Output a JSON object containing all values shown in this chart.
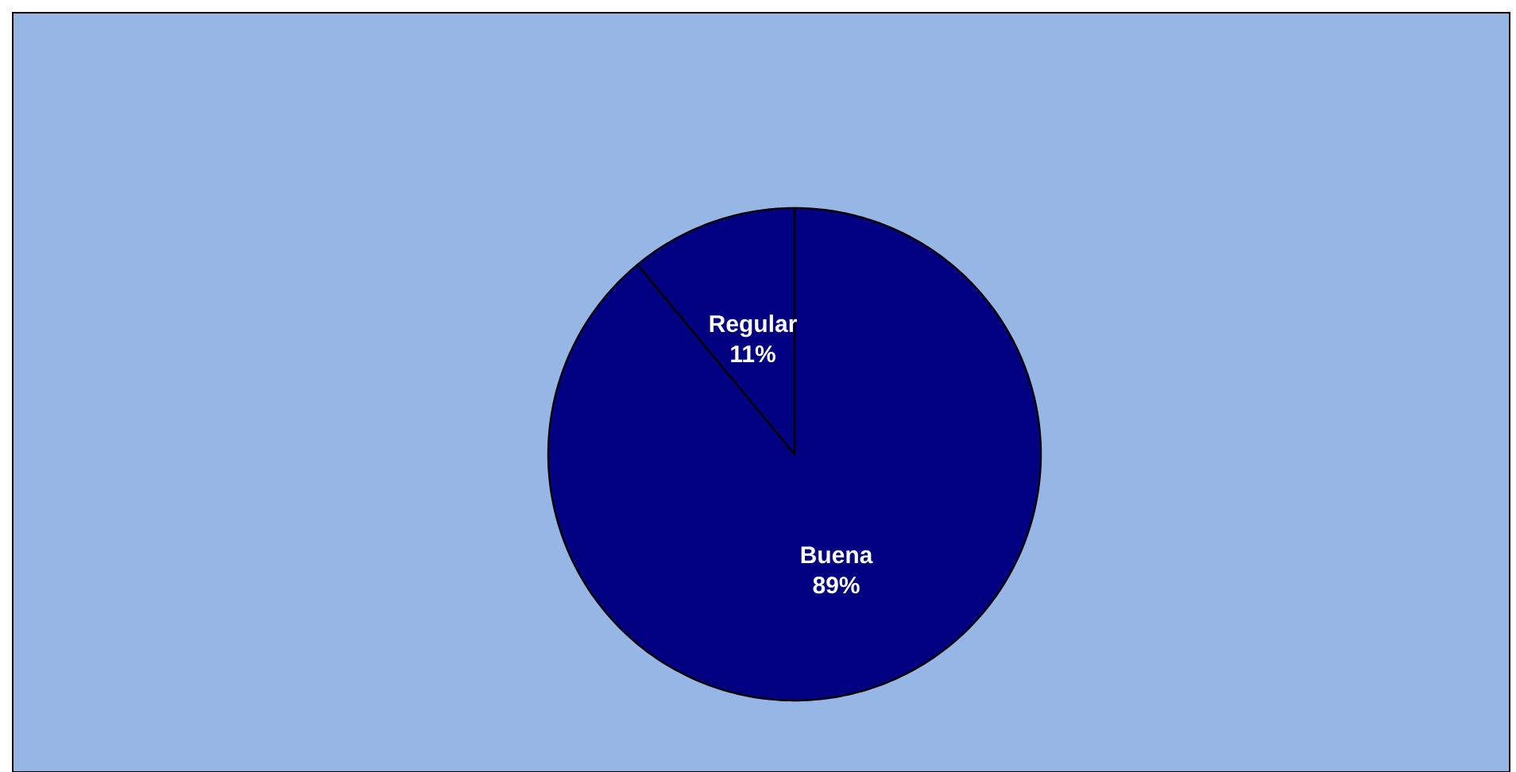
{
  "chart_data": {
    "type": "pie",
    "categories": [
      "Buena",
      "Regular"
    ],
    "values": [
      89,
      11
    ],
    "colors": [
      "#000080",
      "#000080"
    ],
    "value_labels": [
      "89%",
      "11%"
    ]
  }
}
